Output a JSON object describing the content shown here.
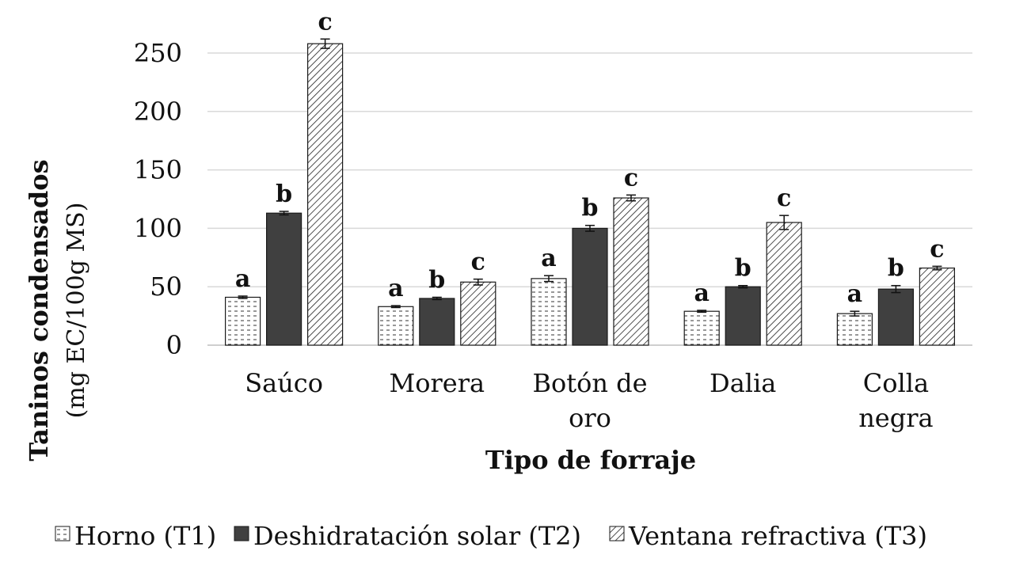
{
  "chart_data": {
    "type": "bar",
    "xlabel": "Tipo de forraje",
    "ylabel": "Taninos condensados",
    "ylabel_units": "(mg EC/100g MS)",
    "ylim": [
      0,
      270
    ],
    "yticks": [
      0,
      50,
      100,
      150,
      200,
      250
    ],
    "grid": true,
    "legend_position": "bottom",
    "categories": [
      [
        "Saúco"
      ],
      [
        "Morera"
      ],
      [
        "Botón de",
        "oro"
      ],
      [
        "Dalia"
      ],
      [
        "Colla",
        "negra"
      ]
    ],
    "series": [
      {
        "name": "Horno (T1)",
        "pattern": "dots",
        "values": [
          41,
          33,
          57,
          29,
          27
        ],
        "errors": [
          1,
          0.8,
          2.5,
          0.8,
          2
        ],
        "letters": [
          "a",
          "a",
          "a",
          "a",
          "a"
        ]
      },
      {
        "name": "Deshidratación solar (T2)",
        "pattern": "solid",
        "values": [
          113,
          40,
          100,
          50,
          48
        ],
        "errors": [
          1.5,
          1,
          2.5,
          1,
          3
        ],
        "letters": [
          "b",
          "b",
          "b",
          "b",
          "b"
        ]
      },
      {
        "name": "Ventana refractiva (T3)",
        "pattern": "hatch",
        "values": [
          258,
          54,
          126,
          105,
          66
        ],
        "errors": [
          4,
          2.5,
          2.5,
          6,
          1.5
        ],
        "letters": [
          "c",
          "c",
          "c",
          "c",
          "c"
        ]
      }
    ],
    "colors": {
      "solid": "#404040",
      "stroke": "#1a1a1a",
      "grid": "#d9d9d9"
    }
  }
}
